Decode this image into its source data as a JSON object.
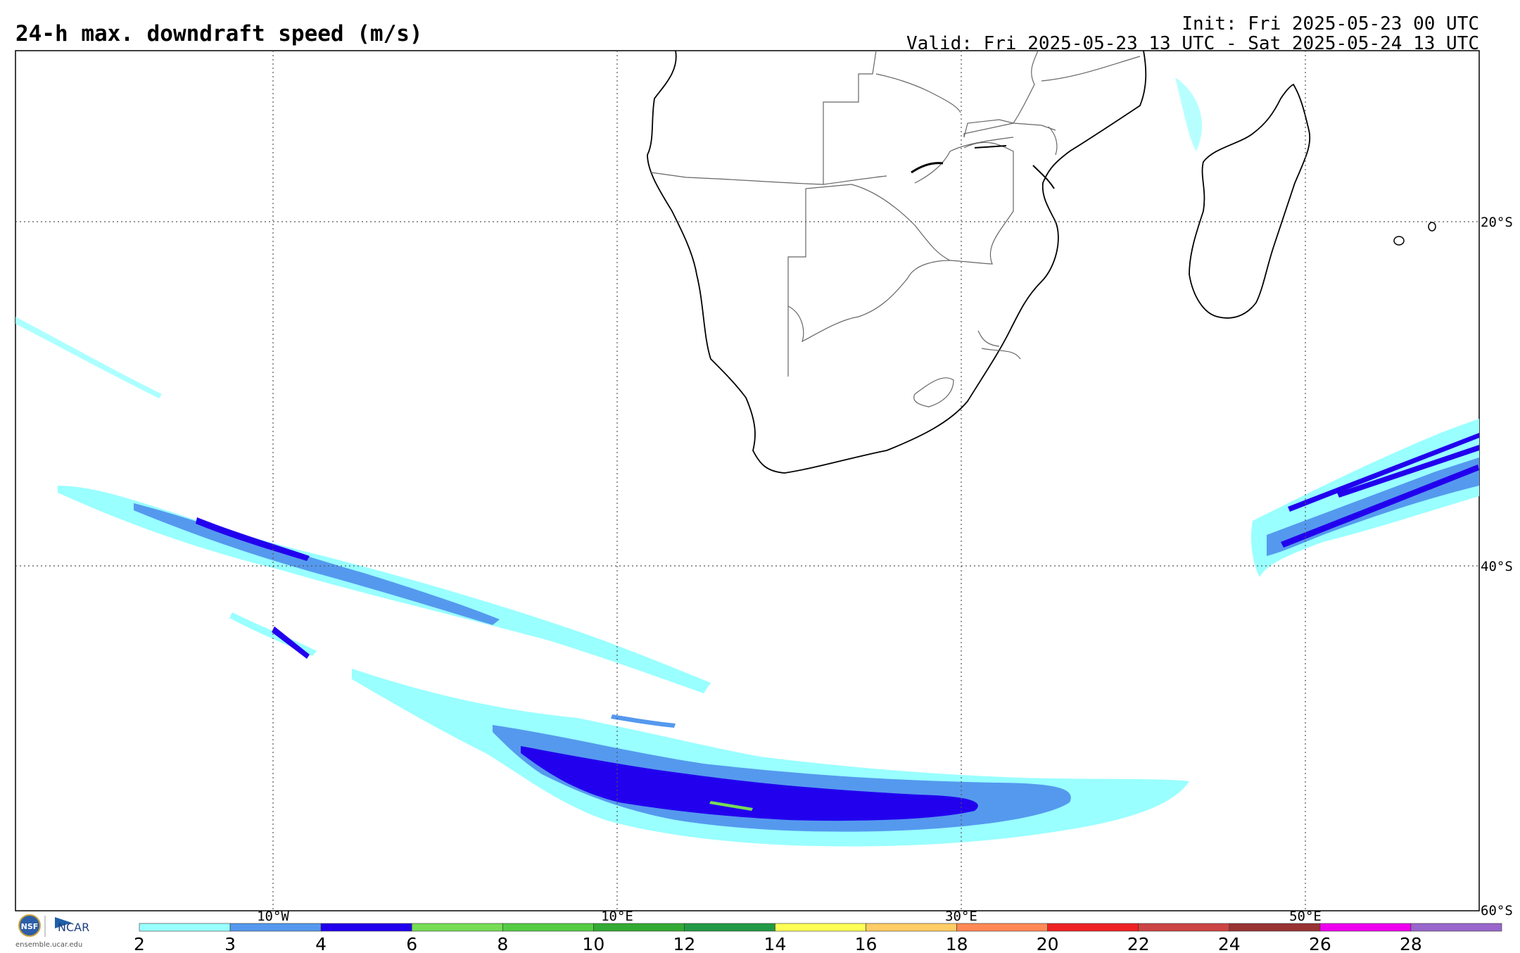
{
  "header": {
    "title": "24-h max. downdraft speed (m/s)",
    "init": "Init: Fri 2025-05-23 00 UTC",
    "valid": "Valid: Fri 2025-05-23 13 UTC - Sat 2025-05-24 13 UTC"
  },
  "grid": {
    "lon_labels": [
      "10°W",
      "10°E",
      "30°E",
      "50°E"
    ],
    "lat_labels": [
      "20°S",
      "40°S",
      "60°S"
    ]
  },
  "colorbar": {
    "ticks": [
      "2",
      "3",
      "4",
      "6",
      "8",
      "10",
      "12",
      "14",
      "16",
      "18",
      "20",
      "22",
      "24",
      "26",
      "28"
    ],
    "colors": [
      "#99ffff",
      "#5599ee",
      "#2200ee",
      "#77dd55",
      "#55cc44",
      "#33aa33",
      "#229944",
      "#ffff55",
      "#ffcc66",
      "#ff8855",
      "#ee2222",
      "#cc4444",
      "#993333",
      "#ee00ee",
      "#9966cc"
    ]
  },
  "logo": {
    "org": "NCAR",
    "seal": "NSF",
    "url": "ensemble.ucar.edu"
  }
}
